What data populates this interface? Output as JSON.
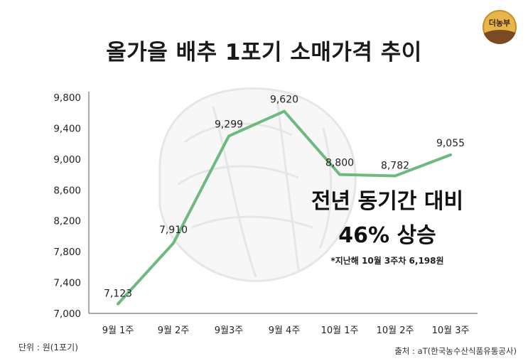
{
  "title": "올가을 배추 1포기 소매가격 추이",
  "logo_text": "더농부",
  "unit_note": "단위 : 원(1포기)",
  "source_note": "출처 : aT(한국농수산식품유통공사)",
  "highlight": {
    "line1": "전년 동기간 대비",
    "line2": "46% 상승",
    "line3": "*지난해 10월 3주차 6,198원"
  },
  "colors": {
    "line": "#6db97f",
    "axis": "#555555",
    "logo": "#e8b54a"
  },
  "chart_data": {
    "type": "line",
    "categories": [
      "9월 1주",
      "9월 2주",
      "9월3주",
      "9월 4주",
      "10월 1주",
      "10월 2주",
      "10월 3주"
    ],
    "values": [
      7123,
      7910,
      9299,
      9620,
      8800,
      8782,
      9055
    ],
    "value_labels": [
      "7,123",
      "7,910",
      "9,299",
      "9,620",
      "8,800",
      "8,782",
      "9,055"
    ],
    "yticks": [
      "9,800",
      "9,400",
      "9,000",
      "8,600",
      "8,200",
      "7,800",
      "7,400",
      "7,000"
    ],
    "ytick_values": [
      9800,
      9400,
      9000,
      8600,
      8200,
      7800,
      7400,
      7000
    ],
    "ylim": [
      7000,
      9800
    ],
    "grid": false,
    "legend": "none"
  }
}
